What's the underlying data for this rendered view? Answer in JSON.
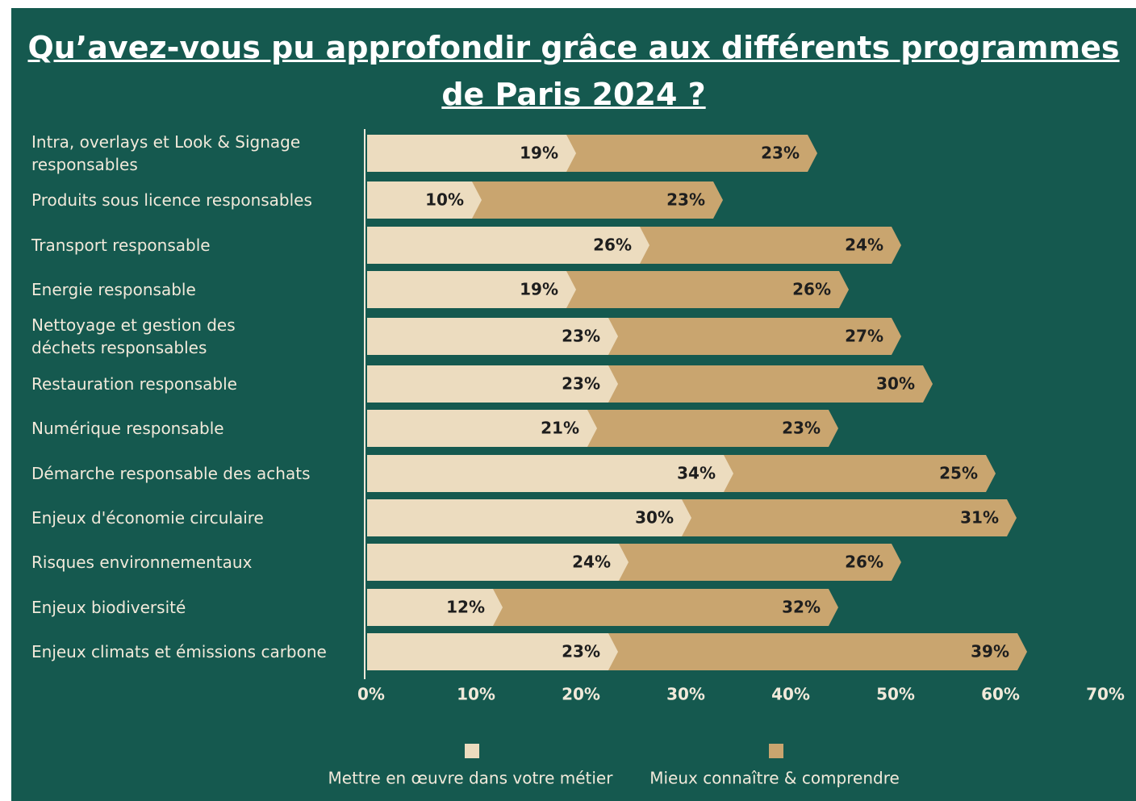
{
  "chart_data": {
    "type": "stacked_barh",
    "title": "Qu’avez-vous pu approfondir grâce aux différents programmes\nde Paris 2024 ?",
    "categories": [
      "Intra, overlays et Look & Signage\nresponsables",
      "Produits sous licence responsables",
      "Transport responsable",
      "Energie responsable",
      "Nettoyage et gestion des\ndéchets responsables",
      "Restauration responsable",
      "Numérique responsable",
      "Démarche responsable des achats",
      "Enjeux d'économie circulaire",
      "Risques environnementaux",
      "Enjeux biodiversité",
      "Enjeux climats et émissions carbone"
    ],
    "series": [
      {
        "name": "Mettre en œuvre dans votre métier",
        "color": "#ecdcbf",
        "values": [
          19,
          10,
          26,
          19,
          23,
          23,
          21,
          34,
          30,
          24,
          12,
          23
        ],
        "value_labels": [
          "19%",
          "10%",
          "26%",
          "19%",
          "23%",
          "23%",
          "21%",
          "34%",
          "30%",
          "24%",
          "12%",
          "23%"
        ]
      },
      {
        "name": "Mieux connaître & comprendre",
        "color": "#c9a56f",
        "values": [
          23,
          23,
          24,
          26,
          27,
          30,
          23,
          25,
          31,
          26,
          32,
          39
        ],
        "value_labels": [
          "23%",
          "23%",
          "24%",
          "26%",
          "27%",
          "30%",
          "23%",
          "25%",
          "31%",
          "26%",
          "32%",
          "39%"
        ]
      }
    ],
    "xlim": [
      0,
      70
    ],
    "xticks": [
      {
        "value": 0,
        "label": "0%"
      },
      {
        "value": 10,
        "label": "10%"
      },
      {
        "value": 20,
        "label": "20%"
      },
      {
        "value": 30,
        "label": "30%"
      },
      {
        "value": 40,
        "label": "40%"
      },
      {
        "value": 50,
        "label": "50%"
      },
      {
        "value": 60,
        "label": "60%"
      },
      {
        "value": 70,
        "label": "70%"
      }
    ],
    "legend": "bottom"
  }
}
